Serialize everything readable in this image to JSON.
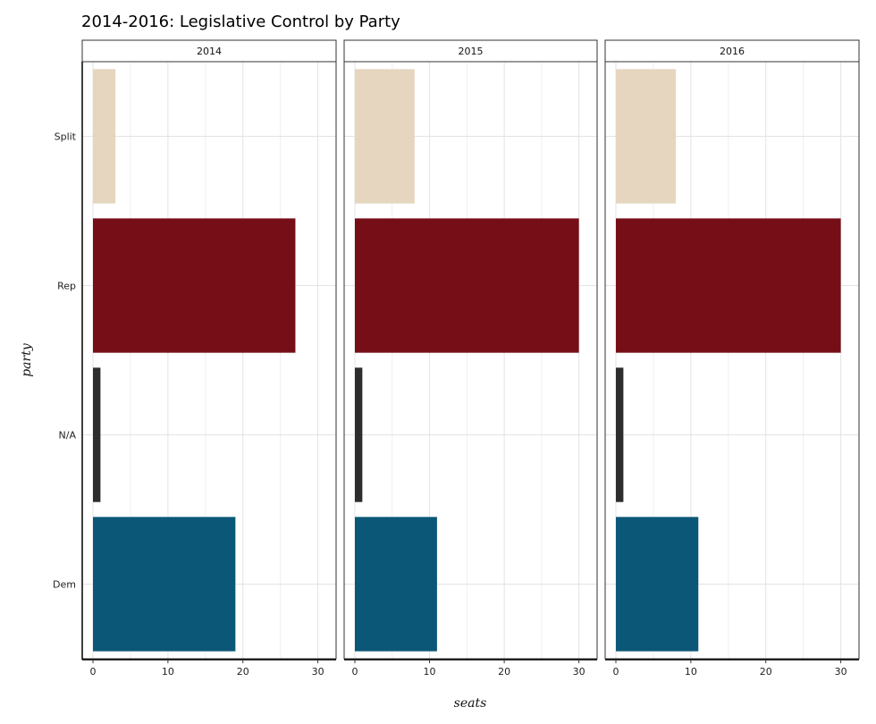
{
  "chart_data": {
    "type": "bar",
    "orientation": "horizontal",
    "title": "2014-2016: Legislative Control by Party",
    "xlabel": "seats",
    "ylabel": "party",
    "categories": [
      "Split",
      "Rep",
      "N/A",
      "Dem"
    ],
    "xlim": [
      0,
      31
    ],
    "xticks": [
      0,
      10,
      20,
      30
    ],
    "grid": true,
    "colors": {
      "Split": "#e6d6bf",
      "Rep": "#760e18",
      "N/A": "#2d2d2d",
      "Dem": "#0b5777"
    },
    "facets": [
      {
        "label": "2014",
        "values": {
          "Split": 3,
          "Rep": 27,
          "N/A": 1,
          "Dem": 19
        }
      },
      {
        "label": "2015",
        "values": {
          "Split": 8,
          "Rep": 30,
          "N/A": 1,
          "Dem": 11
        }
      },
      {
        "label": "2016",
        "values": {
          "Split": 8,
          "Rep": 30,
          "N/A": 1,
          "Dem": 11
        }
      }
    ]
  }
}
